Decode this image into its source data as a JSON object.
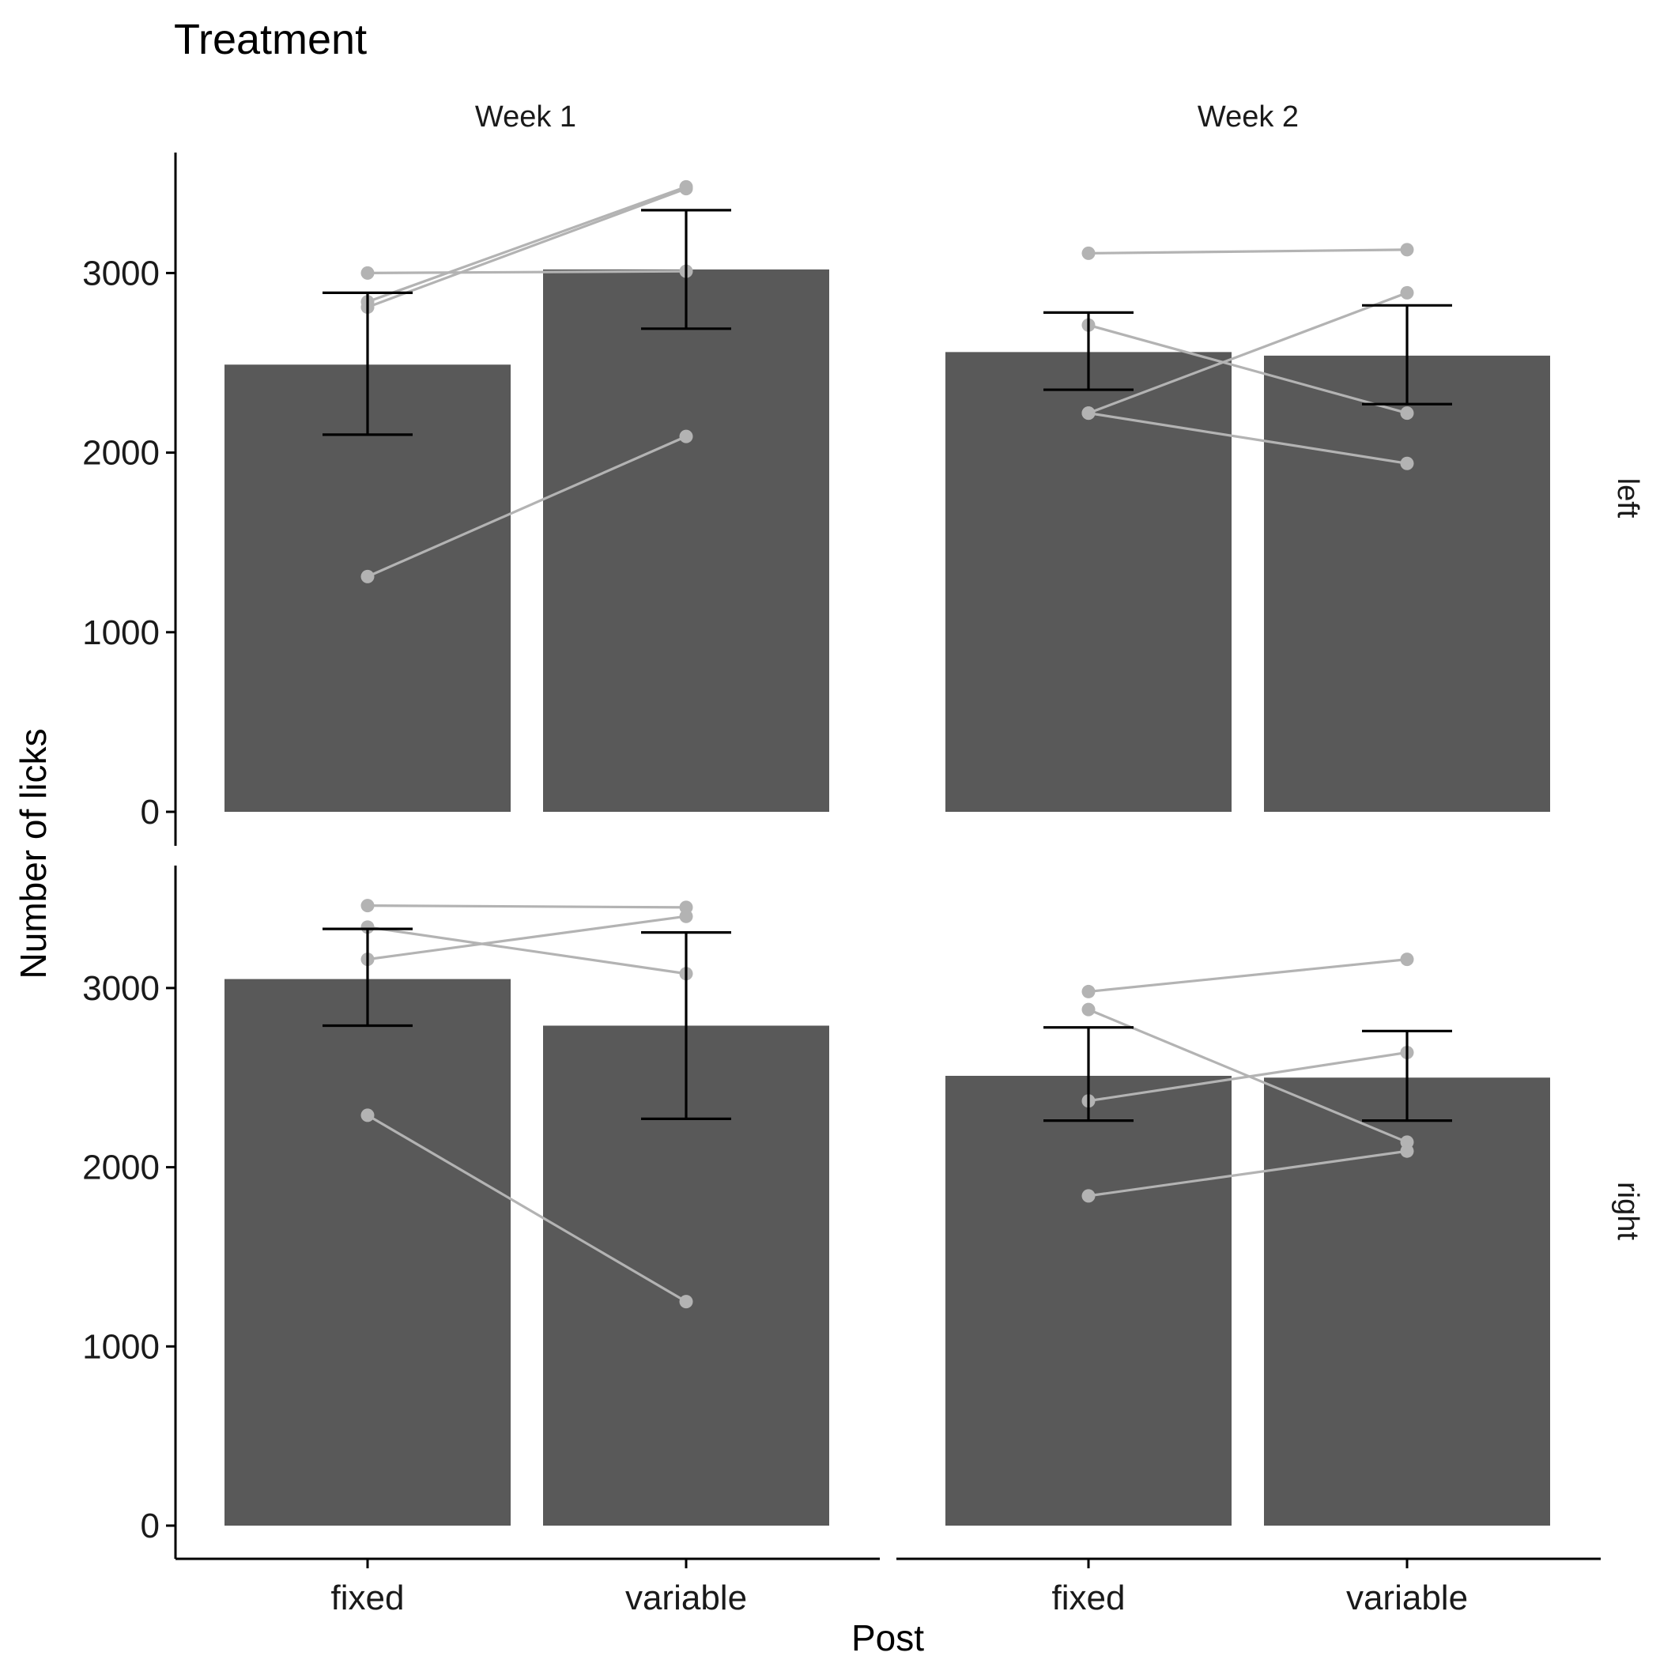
{
  "chart_data": {
    "type": "bar",
    "title": "Treatment",
    "xlabel": "Post",
    "ylabel": "Number of licks",
    "categories": [
      "fixed",
      "variable"
    ],
    "ylim": [
      0,
      3600
    ],
    "yticks": [
      0,
      1000,
      2000,
      3000
    ],
    "grid": false,
    "column_facets": [
      "Week 1",
      "Week 2"
    ],
    "row_facets": [
      "left",
      "right"
    ],
    "panels": [
      {
        "column": "Week 1",
        "row": "left",
        "bars": [
          {
            "category": "fixed",
            "value": 2490,
            "error_low": 2100,
            "error_high": 2890
          },
          {
            "category": "variable",
            "value": 3020,
            "error_low": 2690,
            "error_high": 3350
          }
        ],
        "subject_lines": [
          [
            3000,
            3010
          ],
          [
            2840,
            3480
          ],
          [
            2810,
            3470
          ],
          [
            1310,
            2090
          ]
        ]
      },
      {
        "column": "Week 2",
        "row": "left",
        "bars": [
          {
            "category": "fixed",
            "value": 2560,
            "error_low": 2350,
            "error_high": 2780
          },
          {
            "category": "variable",
            "value": 2540,
            "error_low": 2270,
            "error_high": 2820
          }
        ],
        "subject_lines": [
          [
            3110,
            3130
          ],
          [
            2710,
            2220
          ],
          [
            2220,
            2890
          ],
          [
            2220,
            1940
          ]
        ]
      },
      {
        "column": "Week 1",
        "row": "right",
        "bars": [
          {
            "category": "fixed",
            "value": 3050,
            "error_low": 2790,
            "error_high": 3330
          },
          {
            "category": "variable",
            "value": 2790,
            "error_low": 2270,
            "error_high": 3310
          }
        ],
        "subject_lines": [
          [
            3460,
            3450
          ],
          [
            3340,
            3080
          ],
          [
            3160,
            3400
          ],
          [
            2290,
            1250
          ]
        ]
      },
      {
        "column": "Week 2",
        "row": "right",
        "bars": [
          {
            "category": "fixed",
            "value": 2510,
            "error_low": 2260,
            "error_high": 2780
          },
          {
            "category": "variable",
            "value": 2500,
            "error_low": 2260,
            "error_high": 2760
          }
        ],
        "subject_lines": [
          [
            2980,
            3160
          ],
          [
            2880,
            2140
          ],
          [
            2370,
            2640
          ],
          [
            1840,
            2090
          ]
        ]
      }
    ],
    "colors": {
      "bar": "#595959",
      "subject_line": "#b3b3b3",
      "error_bar": "#000000",
      "axis": "#000000"
    }
  }
}
